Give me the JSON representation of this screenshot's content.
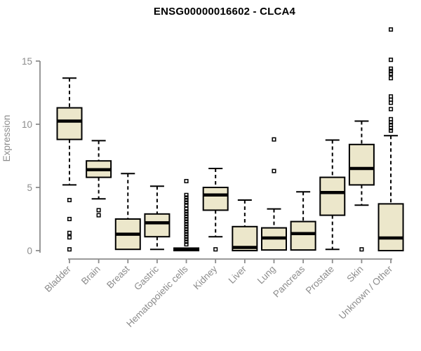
{
  "title": "ENSG00000016602 - CLCA4",
  "colors": {
    "box_fill": "#ECE7CB",
    "box_stroke": "#000000",
    "axis": "#8C8C8C",
    "title": "#000000",
    "background": "#FFFFFF"
  },
  "chart_data": {
    "type": "boxplot",
    "title": "ENSG00000016602 - CLCA4",
    "xlabel": "",
    "ylabel": "Expression",
    "ylim": [
      0,
      17.5
    ],
    "yticks": [
      0,
      5,
      10,
      15
    ],
    "grid": false,
    "legend": "none",
    "categories": [
      "Bladder",
      "Brain",
      "Breast",
      "Gastric",
      "Hematopoietic cells",
      "Kidney",
      "Liver",
      "Lung",
      "Pancreas",
      "Prostate",
      "Skin",
      "Unknown / Other"
    ],
    "series": [
      {
        "label": "Bladder",
        "whisker_low": 5.2,
        "q1": 8.8,
        "median": 10.25,
        "q3": 11.3,
        "whisker_high": 13.65,
        "outliers": [
          4.0,
          2.5,
          1.4,
          1.05,
          0.1
        ]
      },
      {
        "label": "Brain",
        "whisker_low": 4.1,
        "q1": 5.8,
        "median": 6.4,
        "q3": 7.1,
        "whisker_high": 8.7,
        "outliers": [
          3.2,
          2.8
        ]
      },
      {
        "label": "Breast",
        "whisker_low": 0.1,
        "q1": 0.1,
        "median": 1.3,
        "q3": 2.5,
        "whisker_high": 6.1,
        "outliers": []
      },
      {
        "label": "Gastric",
        "whisker_low": 0.1,
        "q1": 1.1,
        "median": 2.2,
        "q3": 2.9,
        "whisker_high": 5.1,
        "outliers": []
      },
      {
        "label": "Hematopoietic cells",
        "whisker_low": 0,
        "q1": 0,
        "median": 0.1,
        "q3": 0.2,
        "whisker_high": 0.25,
        "outliers": [
          5.5,
          4.4,
          4.2,
          4.0,
          3.8,
          3.6,
          3.3,
          3.1,
          2.9,
          2.7,
          2.5,
          2.3,
          2.1,
          1.9,
          1.7,
          1.5,
          1.3,
          1.1,
          0.9,
          0.7,
          0.5
        ]
      },
      {
        "label": "Kidney",
        "whisker_low": 1.1,
        "q1": 3.2,
        "median": 4.4,
        "q3": 5.0,
        "whisker_high": 6.5,
        "outliers": [
          0.1
        ]
      },
      {
        "label": "Liver",
        "whisker_low": 0,
        "q1": 0,
        "median": 0.25,
        "q3": 1.9,
        "whisker_high": 4.0,
        "outliers": []
      },
      {
        "label": "Lung",
        "whisker_low": 0,
        "q1": 0.05,
        "median": 1.0,
        "q3": 1.8,
        "whisker_high": 3.3,
        "outliers": [
          8.8,
          6.3
        ]
      },
      {
        "label": "Pancreas",
        "whisker_low": 0.05,
        "q1": 0.05,
        "median": 1.35,
        "q3": 2.3,
        "whisker_high": 4.65,
        "outliers": []
      },
      {
        "label": "Prostate",
        "whisker_low": 0.1,
        "q1": 2.8,
        "median": 4.6,
        "q3": 5.8,
        "whisker_high": 8.75,
        "outliers": []
      },
      {
        "label": "Skin",
        "whisker_low": 3.6,
        "q1": 5.2,
        "median": 6.5,
        "q3": 8.4,
        "whisker_high": 10.25,
        "outliers": [
          0.1
        ]
      },
      {
        "label": "Unknown / Other",
        "whisker_low": 0,
        "q1": 0,
        "median": 1.0,
        "q3": 3.7,
        "whisker_high": 9.1,
        "outliers": [
          17.5,
          15.1,
          14.4,
          14.2,
          14.0,
          13.65,
          12.2,
          11.95,
          11.7,
          11.2,
          10.4,
          10.15,
          9.95,
          9.7,
          9.5
        ]
      }
    ]
  }
}
